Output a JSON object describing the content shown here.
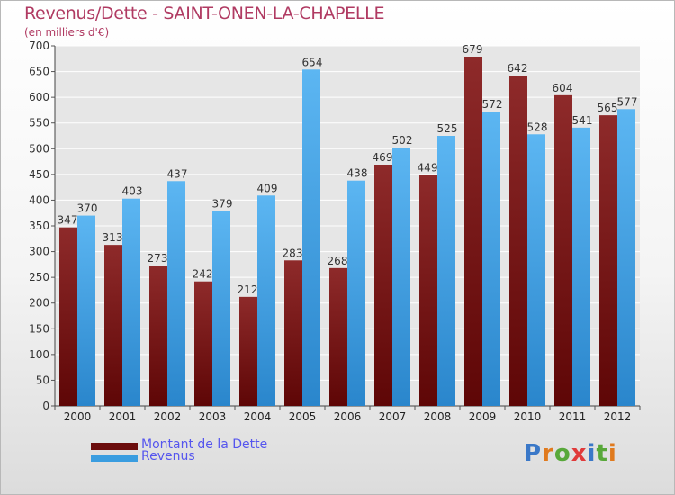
{
  "title": "Revenus/Dette - SAINT-ONEN-LA-CHAPELLE",
  "subtitle": "(en milliers d'€)",
  "logo_text": "Proxiti",
  "colors": {
    "dette": "#6b0c0c",
    "revenus": "#3a9de0",
    "title": "#b03a62",
    "legend_text": "#5555ee"
  },
  "legend": {
    "dette_label": "Montant de la Dette",
    "revenus_label": "Revenus"
  },
  "chart_data": {
    "type": "bar",
    "categories": [
      "2000",
      "2001",
      "2002",
      "2003",
      "2004",
      "2005",
      "2006",
      "2007",
      "2008",
      "2009",
      "2010",
      "2011",
      "2012"
    ],
    "series": [
      {
        "name": "Montant de la Dette",
        "values": [
          347,
          313,
          273,
          242,
          212,
          283,
          268,
          469,
          449,
          679,
          642,
          604,
          565
        ]
      },
      {
        "name": "Revenus",
        "values": [
          370,
          403,
          437,
          379,
          409,
          654,
          438,
          502,
          525,
          572,
          528,
          541,
          577
        ]
      }
    ],
    "ylim": [
      0,
      700
    ],
    "yticks": [
      0,
      50,
      100,
      150,
      200,
      250,
      300,
      350,
      400,
      450,
      500,
      550,
      600,
      650,
      700
    ],
    "grid": true,
    "legend_position": "bottom-left"
  }
}
